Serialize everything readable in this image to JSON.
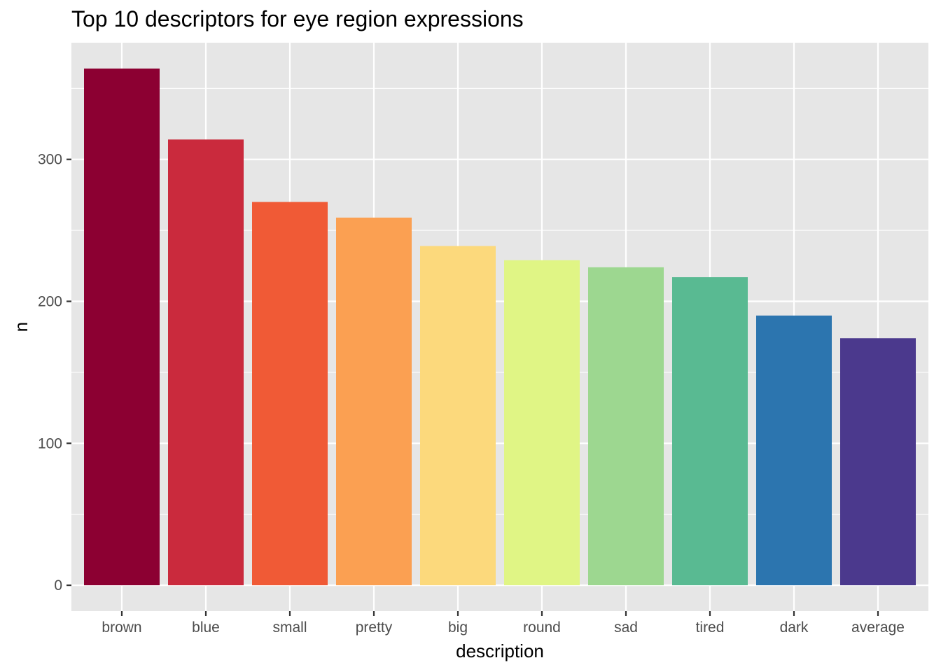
{
  "chart_data": {
    "type": "bar",
    "title": "Top 10 descriptors for eye region expressions",
    "xlabel": "description",
    "ylabel": "n",
    "categories": [
      "brown",
      "blue",
      "small",
      "pretty",
      "big",
      "round",
      "sad",
      "tired",
      "dark",
      "average"
    ],
    "values": [
      364,
      314,
      270,
      259,
      239,
      229,
      224,
      217,
      190,
      174
    ],
    "colors": [
      "#8C0032",
      "#CA2A3D",
      "#F05A36",
      "#FBA052",
      "#FCD97C",
      "#E0F585",
      "#9DD790",
      "#59BA92",
      "#2C75AF",
      "#4B398D"
    ],
    "ylim": [
      -18.2,
      382.2
    ],
    "yticks": [
      0,
      100,
      200,
      300
    ],
    "grid": true,
    "legend": "none",
    "panel_background": "#E6E6E6",
    "gridline_color": "#FFFFFF"
  }
}
